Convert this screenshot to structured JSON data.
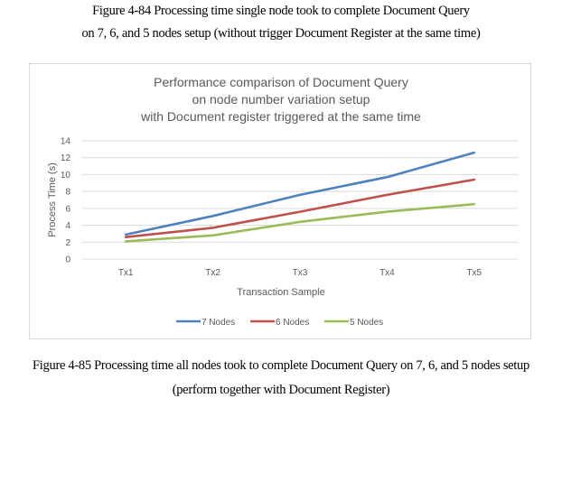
{
  "captions": {
    "top_line1": "Figure 4-84 Processing time single node took to complete Document Query",
    "top_line2": "on 7, 6, and 5 nodes setup (without trigger Document Register at the same time)",
    "bottom_line1": "Figure 4-85 Processing time all nodes took to complete Document Query on 7, 6, and 5 nodes setup",
    "bottom_line2": "(perform together with Document Register)"
  },
  "chart_data": {
    "type": "line",
    "title_lines": [
      "Performance comparison of Document Query",
      "on node number variation setup",
      "with Document register triggered at the same time"
    ],
    "xlabel": "Transaction Sample",
    "ylabel": "Process Time (s)",
    "categories": [
      "Tx1",
      "Tx2",
      "Tx3",
      "Tx4",
      "Tx5"
    ],
    "ylim": [
      0,
      14
    ],
    "yticks": [
      0,
      2,
      4,
      6,
      8,
      10,
      12,
      14
    ],
    "grid": true,
    "legend_position": "bottom",
    "series": [
      {
        "name": "7 Nodes",
        "color": "#4f81bd",
        "values": [
          2.9,
          5.1,
          7.6,
          9.7,
          12.6
        ]
      },
      {
        "name": "6 Nodes",
        "color": "#c0504d",
        "values": [
          2.6,
          3.7,
          5.6,
          7.6,
          9.4
        ]
      },
      {
        "name": "5 Nodes",
        "color": "#9bbb59",
        "values": [
          2.1,
          2.8,
          4.4,
          5.6,
          6.5
        ]
      }
    ]
  }
}
